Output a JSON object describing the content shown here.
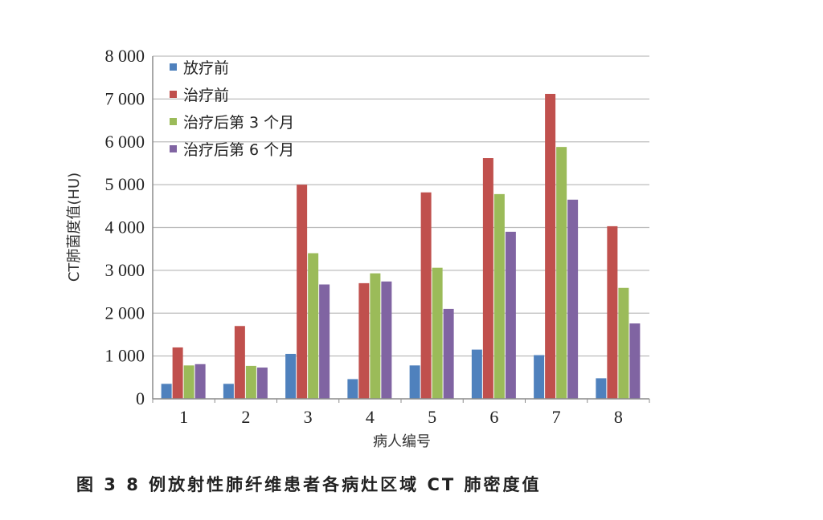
{
  "chart_data": {
    "type": "bar",
    "title": "",
    "xlabel": "病人编号",
    "ylabel": "CT肺菌度值(HU)",
    "categories": [
      "1",
      "2",
      "3",
      "4",
      "5",
      "6",
      "7",
      "8"
    ],
    "ylim": [
      0,
      8000
    ],
    "yticks": [
      0,
      1000,
      2000,
      3000,
      4000,
      5000,
      6000,
      7000,
      8000
    ],
    "ytick_labels": [
      "0",
      "1 000",
      "2 000",
      "3 000",
      "4 000",
      "5 000",
      "6 000",
      "7 000",
      "8 000"
    ],
    "grid": true,
    "legend_position": "top-left",
    "series": [
      {
        "name": "放疗前",
        "color": "#4f81bd",
        "values": [
          350,
          350,
          1050,
          460,
          780,
          1150,
          1020,
          480
        ]
      },
      {
        "name": "治疗前",
        "color": "#c0504d",
        "values": [
          1200,
          1700,
          5000,
          2700,
          4820,
          5620,
          7120,
          4030
        ]
      },
      {
        "name": "治疗后第 3 个月",
        "color": "#9bbb59",
        "values": [
          780,
          770,
          3400,
          2930,
          3060,
          4780,
          5880,
          2590
        ]
      },
      {
        "name": "治疗后第 6 个月",
        "color": "#8064a2",
        "values": [
          810,
          730,
          2670,
          2740,
          2100,
          3900,
          4650,
          1760
        ]
      }
    ]
  },
  "caption": "图 3   8 例放射性肺纤维患者各病灶区域 CT 肺密度值"
}
